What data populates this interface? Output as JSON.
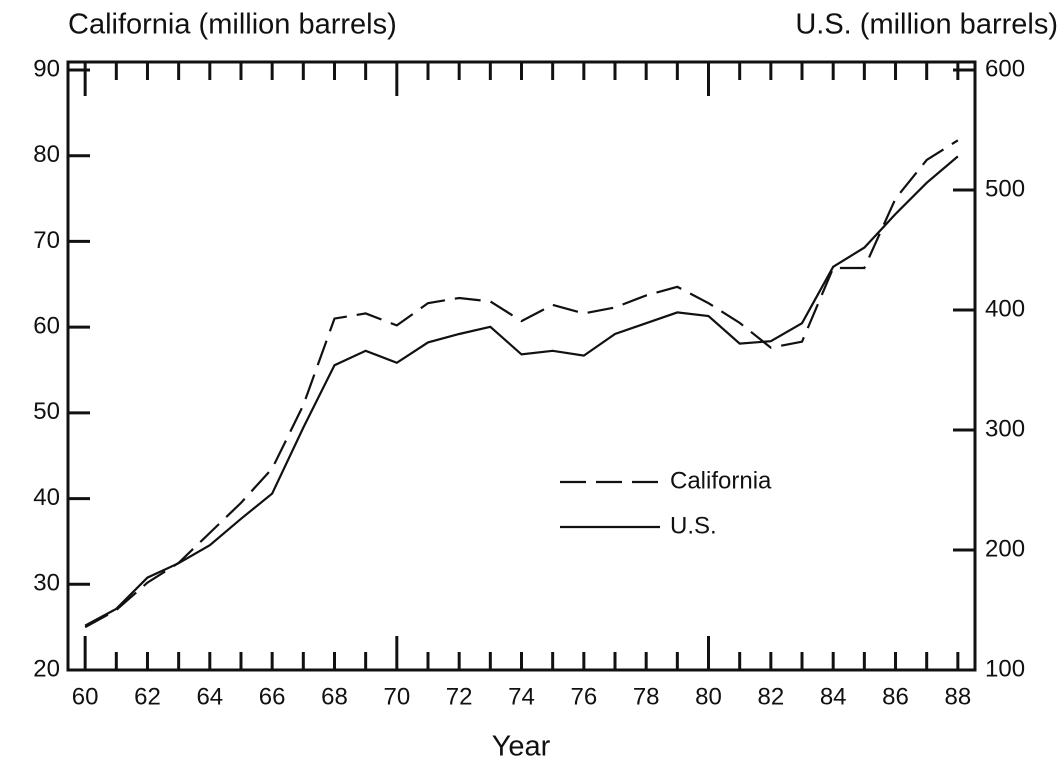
{
  "chart_data": {
    "type": "line",
    "y_label": "California (million barrels)",
    "y2_label": "U.S. (million barrels)",
    "x_label": "Year",
    "x": [
      60,
      61,
      62,
      63,
      64,
      65,
      66,
      67,
      68,
      69,
      70,
      71,
      72,
      73,
      74,
      75,
      76,
      77,
      78,
      79,
      80,
      81,
      82,
      83,
      84,
      85,
      86,
      87,
      88
    ],
    "series": [
      {
        "name": "California",
        "color": "#111111",
        "dash": true,
        "axis": "y",
        "values": [
          25,
          27,
          30.2,
          32.5,
          36,
          39.5,
          43.5,
          50.9,
          61,
          61.6,
          60.2,
          62.8,
          63.4,
          63,
          60.7,
          62.6,
          61.6,
          62.3,
          63.7,
          64.7,
          62.8,
          60.5,
          57.6,
          58.3,
          66.9,
          66.9,
          75,
          79.5,
          81.8
        ]
      },
      {
        "name": "U.S.",
        "color": "#111111",
        "dash": false,
        "axis": "y2",
        "values": [
          137,
          151,
          177,
          189,
          204,
          226,
          247,
          302,
          354,
          366,
          356,
          373,
          380,
          386,
          363,
          366,
          362,
          380,
          389,
          398,
          395,
          372,
          374,
          389,
          436,
          452,
          480,
          506,
          528
        ]
      }
    ],
    "xlim": [
      59.45,
      88.55
    ],
    "xticks": [
      60,
      62,
      64,
      66,
      68,
      70,
      72,
      74,
      76,
      78,
      80,
      82,
      84,
      86,
      88
    ],
    "ylim": [
      20,
      90
    ],
    "yticks": [
      20,
      30,
      40,
      50,
      60,
      70,
      80,
      90
    ],
    "y2lim": [
      100,
      600
    ],
    "y2ticks": [
      100,
      200,
      300,
      400,
      500,
      600
    ],
    "grid": false,
    "legend": "center-right"
  }
}
